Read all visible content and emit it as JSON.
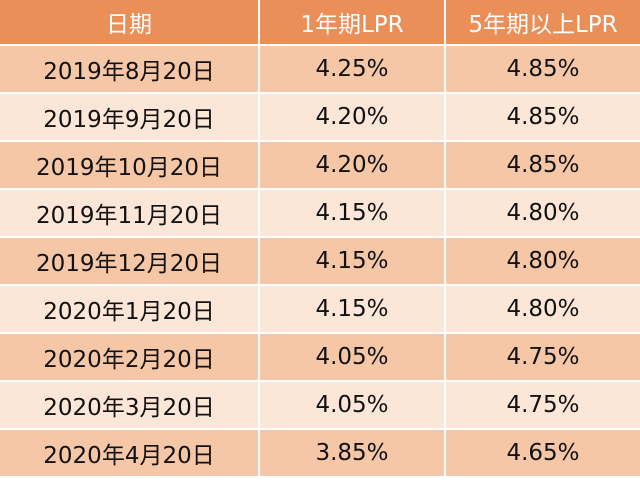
{
  "table": {
    "headers": [
      "日期",
      "1年期LPR",
      "5年期以上LPR"
    ],
    "rows": [
      [
        "2019年8月20日",
        "4.25%",
        "4.85%"
      ],
      [
        "2019年9月20日",
        "4.20%",
        "4.85%"
      ],
      [
        "2019年10月20日",
        "4.20%",
        "4.85%"
      ],
      [
        "2019年11月20日",
        "4.15%",
        "4.80%"
      ],
      [
        "2019年12月20日",
        "4.15%",
        "4.80%"
      ],
      [
        "2020年1月20日",
        "4.15%",
        "4.80%"
      ],
      [
        "2020年2月20日",
        "4.05%",
        "4.75%"
      ],
      [
        "2020年3月20日",
        "4.05%",
        "4.75%"
      ],
      [
        "2020年4月20日",
        "3.85%",
        "4.65%"
      ]
    ]
  },
  "colors": {
    "header_bg": "#eb8f59",
    "row_dark": "#f5c7a6",
    "row_light": "#fbe6d7"
  }
}
